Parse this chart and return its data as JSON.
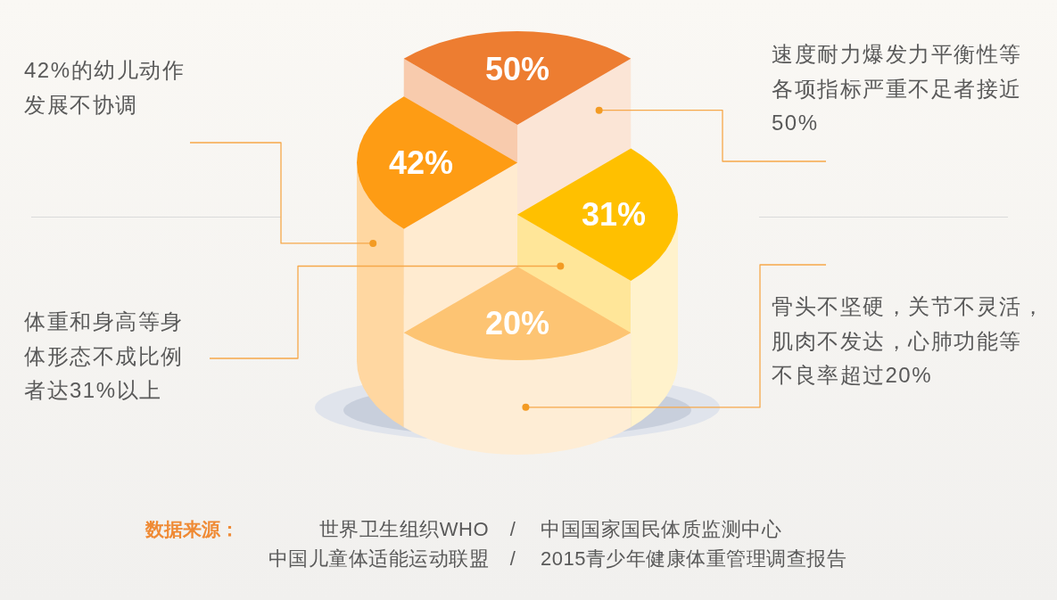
{
  "chart_data": {
    "type": "other",
    "values": [
      50,
      42,
      31,
      20
    ],
    "value_labels": [
      "50%",
      "42%",
      "31%",
      "20%"
    ],
    "colors": [
      "#ed7d31",
      "#fe9c14",
      "#ffc000",
      "#fdc473"
    ],
    "annotations": [
      "速度耐力爆发力平衡性等各项指标严重不足者接近50%",
      "42%的幼儿动作发展不协调",
      "体重和身高等身体形态不成比例者达31%以上",
      "骨头不坚硬，关节不灵活，肌肉不发达，心肺功能等不良率超过20%",
      "数据来源：",
      "世界卫生组织WHO",
      "/",
      "中国国家国民体质监测中心",
      "中国儿童体适能运动联盟",
      "/",
      "2015青少年健康体重管理调查报告"
    ]
  }
}
